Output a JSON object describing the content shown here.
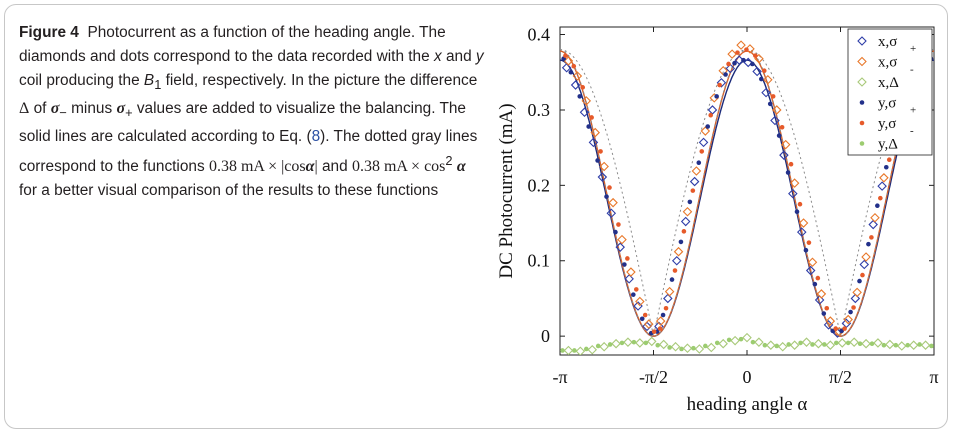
{
  "caption": {
    "figure_label": "Figure 4",
    "title": "Photocurrent as a function of the heading angle.",
    "text_1": "The diamonds and dots correspond to the data recorded with the",
    "x_var": "x",
    "text_and": "and",
    "y_var": "y",
    "text_2": "coil producing the",
    "b_field": "B",
    "b_sub": "1",
    "text_3": "field, respectively. In the picture the difference",
    "delta": "Δ",
    "text_of": "of",
    "sigma_minus": "σ",
    "sigma_minus_sub": "−",
    "text_minus": "minus",
    "sigma_plus": "σ",
    "sigma_plus_sub": "+",
    "text_4": "values are added to visualize the balancing. The solid lines are calculated according to Eq. (",
    "eq_ref": "8",
    "text_5": "). The dotted gray lines correspond to the functions",
    "func1": "0.38 mA × |cos",
    "alpha": "α",
    "func1_end": "|",
    "text_and2": "and",
    "func2": "0.38 mA × cos",
    "func2_sup": "2",
    "text_6": "for a better visual comparison of the results to these functions"
  },
  "chart_data": {
    "type": "scatter",
    "xlabel": "heading angle α",
    "ylabel": "DC Photocurrent (mA)",
    "xlim": [
      -3.1416,
      3.1416
    ],
    "ylim": [
      -0.025,
      0.41
    ],
    "x_ticks": [
      {
        "value": -3.1416,
        "label": "-π"
      },
      {
        "value": -1.5708,
        "label": "-π/2"
      },
      {
        "value": 0,
        "label": "0"
      },
      {
        "value": 1.5708,
        "label": "π/2"
      },
      {
        "value": 3.1416,
        "label": "π"
      }
    ],
    "y_ticks": [
      {
        "value": 0,
        "label": "0"
      },
      {
        "value": 0.1,
        "label": "0.1"
      },
      {
        "value": 0.2,
        "label": "0.2"
      },
      {
        "value": 0.3,
        "label": "0.3"
      },
      {
        "value": 0.4,
        "label": "0.4"
      }
    ],
    "legend": {
      "placement": "top-right",
      "entries": [
        {
          "label": "x,σ",
          "sub": "+",
          "marker": "diamond",
          "color": "#2f3ea8"
        },
        {
          "label": "x,σ",
          "sub": "-",
          "marker": "diamond",
          "color": "#e8782b"
        },
        {
          "label": "x,Δ",
          "sub": "",
          "marker": "diamond",
          "color": "#a9c97a"
        },
        {
          "label": "y,σ",
          "sub": "+",
          "marker": "dot",
          "color": "#22308a"
        },
        {
          "label": "y,σ",
          "sub": "-",
          "marker": "dot",
          "color": "#e65a2a"
        },
        {
          "label": "y,Δ",
          "sub": "",
          "marker": "dot",
          "color": "#9ccc70"
        }
      ]
    },
    "series": [
      {
        "name": "x,σ+",
        "marker": "diamond",
        "color": "#2f3ea8",
        "x": [
          -3.03,
          -2.88,
          -2.73,
          -2.58,
          -2.43,
          -2.28,
          -2.13,
          -1.98,
          -1.83,
          -1.68,
          -1.48,
          -1.33,
          -1.18,
          -1.03,
          -0.88,
          -0.73,
          -0.58,
          -0.43,
          -0.28,
          -0.13,
          0.02,
          0.17,
          0.32,
          0.47,
          0.62,
          0.77,
          0.92,
          1.07,
          1.22,
          1.37,
          1.52,
          1.67,
          1.82,
          1.97,
          2.12,
          2.27,
          2.42,
          2.57,
          2.72,
          2.87,
          3.02
        ],
        "y": [
          0.356,
          0.333,
          0.297,
          0.257,
          0.211,
          0.163,
          0.118,
          0.076,
          0.04,
          0.013,
          0.013,
          0.05,
          0.1,
          0.152,
          0.205,
          0.257,
          0.3,
          0.336,
          0.355,
          0.366,
          0.363,
          0.351,
          0.323,
          0.286,
          0.24,
          0.189,
          0.138,
          0.087,
          0.048,
          0.015,
          0.004,
          0.017,
          0.05,
          0.095,
          0.148,
          0.199,
          0.248,
          0.291,
          0.328,
          0.349,
          0.362
        ]
      },
      {
        "name": "x,σ-",
        "marker": "diamond",
        "color": "#e8782b",
        "x": [
          -3.0,
          -2.85,
          -2.7,
          -2.55,
          -2.4,
          -2.25,
          -2.1,
          -1.95,
          -1.8,
          -1.65,
          -1.45,
          -1.3,
          -1.15,
          -1.0,
          -0.85,
          -0.7,
          -0.55,
          -0.4,
          -0.25,
          -0.1,
          0.05,
          0.2,
          0.35,
          0.5,
          0.65,
          0.8,
          0.95,
          1.1,
          1.25,
          1.4,
          1.55,
          1.7,
          1.85,
          2.0,
          2.15,
          2.3,
          2.45,
          2.6,
          2.75,
          2.9
        ],
        "y": [
          0.365,
          0.345,
          0.312,
          0.27,
          0.225,
          0.177,
          0.128,
          0.085,
          0.046,
          0.016,
          0.02,
          0.059,
          0.112,
          0.165,
          0.219,
          0.272,
          0.316,
          0.352,
          0.374,
          0.386,
          0.381,
          0.368,
          0.34,
          0.3,
          0.254,
          0.203,
          0.15,
          0.098,
          0.056,
          0.02,
          0.006,
          0.022,
          0.058,
          0.105,
          0.157,
          0.21,
          0.26,
          0.302,
          0.339,
          0.36
        ]
      },
      {
        "name": "x,Δ",
        "marker": "diamond",
        "color": "#a9c97a",
        "x": [
          -3.0,
          -2.8,
          -2.6,
          -2.4,
          -2.2,
          -2.0,
          -1.8,
          -1.6,
          -1.4,
          -1.2,
          -1.0,
          -0.8,
          -0.6,
          -0.4,
          -0.2,
          0.0,
          0.2,
          0.4,
          0.6,
          0.8,
          1.0,
          1.2,
          1.4,
          1.6,
          1.8,
          2.0,
          2.2,
          2.4,
          2.6,
          2.8,
          3.0
        ],
        "y": [
          -0.019,
          -0.02,
          -0.018,
          -0.014,
          -0.01,
          -0.008,
          -0.009,
          -0.007,
          -0.011,
          -0.014,
          -0.016,
          -0.017,
          -0.015,
          -0.01,
          -0.006,
          -0.002,
          -0.008,
          -0.012,
          -0.014,
          -0.012,
          -0.008,
          -0.01,
          -0.012,
          -0.009,
          -0.008,
          -0.01,
          -0.009,
          -0.011,
          -0.013,
          -0.012,
          -0.012
        ]
      },
      {
        "name": "y,σ+",
        "marker": "dot",
        "color": "#22308a",
        "x": [
          -3.08,
          -2.96,
          -2.81,
          -2.66,
          -2.51,
          -2.36,
          -2.21,
          -2.06,
          -1.91,
          -1.76,
          -1.61,
          -1.51,
          -1.41,
          -1.26,
          -1.11,
          -0.96,
          -0.81,
          -0.66,
          -0.51,
          -0.36,
          -0.21,
          -0.06,
          0.09,
          0.24,
          0.39,
          0.54,
          0.69,
          0.84,
          0.99,
          1.14,
          1.29,
          1.44,
          1.59,
          1.74,
          1.89,
          2.04,
          2.19,
          2.34,
          2.49,
          2.64,
          2.79,
          2.94,
          3.09
        ],
        "y": [
          0.368,
          0.35,
          0.318,
          0.278,
          0.233,
          0.185,
          0.138,
          0.095,
          0.055,
          0.023,
          0.004,
          0.006,
          0.028,
          0.075,
          0.125,
          0.178,
          0.23,
          0.278,
          0.318,
          0.347,
          0.362,
          0.366,
          0.361,
          0.341,
          0.308,
          0.266,
          0.217,
          0.165,
          0.114,
          0.069,
          0.03,
          0.007,
          0.007,
          0.032,
          0.073,
          0.122,
          0.173,
          0.224,
          0.272,
          0.312,
          0.342,
          0.358,
          0.368
        ]
      },
      {
        "name": "y,σ-",
        "marker": "dot",
        "color": "#e65a2a",
        "x": [
          -3.05,
          -2.91,
          -2.76,
          -2.61,
          -2.46,
          -2.31,
          -2.16,
          -2.01,
          -1.86,
          -1.71,
          -1.56,
          -1.46,
          -1.36,
          -1.21,
          -1.06,
          -0.91,
          -0.76,
          -0.61,
          -0.46,
          -0.31,
          -0.16,
          -0.01,
          0.14,
          0.29,
          0.44,
          0.59,
          0.74,
          0.89,
          1.04,
          1.19,
          1.34,
          1.49,
          1.64,
          1.79,
          1.94,
          2.09,
          2.24,
          2.39,
          2.54,
          2.69,
          2.84,
          2.99
        ],
        "y": [
          0.372,
          0.358,
          0.33,
          0.29,
          0.245,
          0.197,
          0.148,
          0.103,
          0.062,
          0.028,
          0.006,
          0.01,
          0.037,
          0.087,
          0.139,
          0.193,
          0.245,
          0.293,
          0.333,
          0.361,
          0.376,
          0.38,
          0.372,
          0.352,
          0.318,
          0.277,
          0.228,
          0.175,
          0.124,
          0.077,
          0.037,
          0.01,
          0.01,
          0.038,
          0.081,
          0.131,
          0.183,
          0.234,
          0.282,
          0.322,
          0.352,
          0.368
        ]
      },
      {
        "name": "y,Δ",
        "marker": "dot",
        "color": "#9ccc70",
        "x": [
          -3.1,
          -2.9,
          -2.7,
          -2.5,
          -2.3,
          -2.1,
          -1.9,
          -1.7,
          -1.5,
          -1.3,
          -1.1,
          -0.9,
          -0.7,
          -0.5,
          -0.3,
          -0.1,
          0.1,
          0.3,
          0.5,
          0.7,
          0.9,
          1.1,
          1.3,
          1.5,
          1.7,
          1.9,
          2.1,
          2.3,
          2.5,
          2.7,
          2.9,
          3.1
        ],
        "y": [
          -0.019,
          -0.019,
          -0.017,
          -0.013,
          -0.011,
          -0.009,
          -0.008,
          -0.009,
          -0.012,
          -0.015,
          -0.017,
          -0.016,
          -0.013,
          -0.009,
          -0.005,
          -0.004,
          -0.008,
          -0.012,
          -0.013,
          -0.011,
          -0.009,
          -0.011,
          -0.011,
          -0.009,
          -0.009,
          -0.01,
          -0.01,
          -0.012,
          -0.012,
          -0.012,
          -0.011,
          -0.013
        ]
      }
    ],
    "curves": [
      {
        "name": "fit-blue",
        "style": "solid",
        "color": "#1b2a7a",
        "amplitude": 0.366,
        "func": "cos2"
      },
      {
        "name": "fit-orange",
        "style": "solid",
        "color": "#d8622a",
        "amplitude": 0.378,
        "func": "cos2"
      },
      {
        "name": "gray-abs-cos",
        "style": "dotted",
        "color": "#8a8a8a",
        "amplitude": 0.38,
        "func": "abscos"
      },
      {
        "name": "gray-cos2",
        "style": "dotted",
        "color": "#8a8a8a",
        "amplitude": 0.38,
        "func": "cos2"
      }
    ]
  }
}
